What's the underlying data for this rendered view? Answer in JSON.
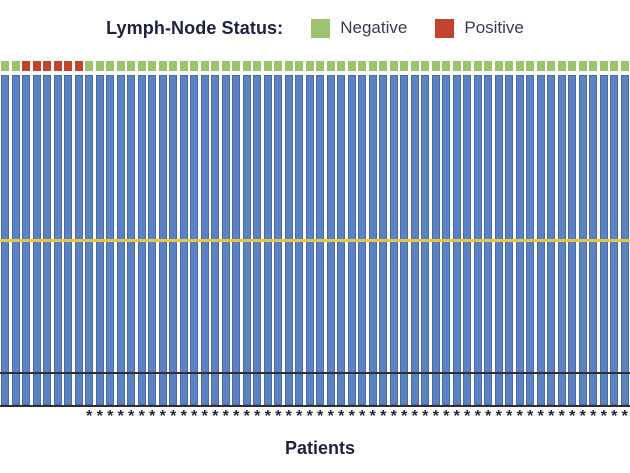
{
  "legend": {
    "title": "Lymph-Node Status:",
    "items": [
      {
        "key": "negative",
        "label": "Negative",
        "color": "#9dc36e"
      },
      {
        "key": "positive",
        "label": "Positive",
        "color": "#c0442e"
      }
    ]
  },
  "footnote_symbol": "*",
  "chart_data": {
    "type": "bar",
    "title": "",
    "xlabel": "Patients",
    "ylabel": "",
    "n_patients": 60,
    "bar_color": "#5b83c1",
    "bar_height_frac": 1.0,
    "grid": false,
    "legend_position": "top-center",
    "reference_lines": [
      {
        "name": "yellow-reference-line",
        "color": "#e8c53e",
        "thickness_px": 3,
        "y_frac_from_top": 0.5
      },
      {
        "name": "black-reference-line",
        "color": "#2e2e38",
        "thickness_px": 2,
        "y_frac_from_top": 0.903
      }
    ],
    "lymph_node_status": [
      "negative",
      "negative",
      "positive",
      "positive",
      "positive",
      "positive",
      "positive",
      "positive",
      "negative",
      "negative",
      "negative",
      "negative",
      "negative",
      "negative",
      "negative",
      "negative",
      "negative",
      "negative",
      "negative",
      "negative",
      "negative",
      "negative",
      "negative",
      "negative",
      "negative",
      "negative",
      "negative",
      "negative",
      "negative",
      "negative",
      "negative",
      "negative",
      "negative",
      "negative",
      "negative",
      "negative",
      "negative",
      "negative",
      "negative",
      "negative",
      "negative",
      "negative",
      "negative",
      "negative",
      "negative",
      "negative",
      "negative",
      "negative",
      "negative",
      "negative",
      "negative",
      "negative",
      "negative",
      "negative",
      "negative",
      "negative",
      "negative",
      "negative",
      "negative",
      "negative"
    ],
    "asterisk_flags": [
      false,
      false,
      false,
      false,
      false,
      false,
      false,
      false,
      true,
      true,
      true,
      true,
      true,
      true,
      true,
      true,
      true,
      true,
      true,
      true,
      true,
      true,
      true,
      true,
      true,
      true,
      true,
      true,
      true,
      true,
      true,
      true,
      true,
      true,
      true,
      true,
      true,
      true,
      true,
      true,
      true,
      true,
      true,
      true,
      true,
      true,
      true,
      true,
      true,
      true,
      true,
      true,
      true,
      true,
      true,
      true,
      true,
      true,
      true,
      true
    ]
  }
}
